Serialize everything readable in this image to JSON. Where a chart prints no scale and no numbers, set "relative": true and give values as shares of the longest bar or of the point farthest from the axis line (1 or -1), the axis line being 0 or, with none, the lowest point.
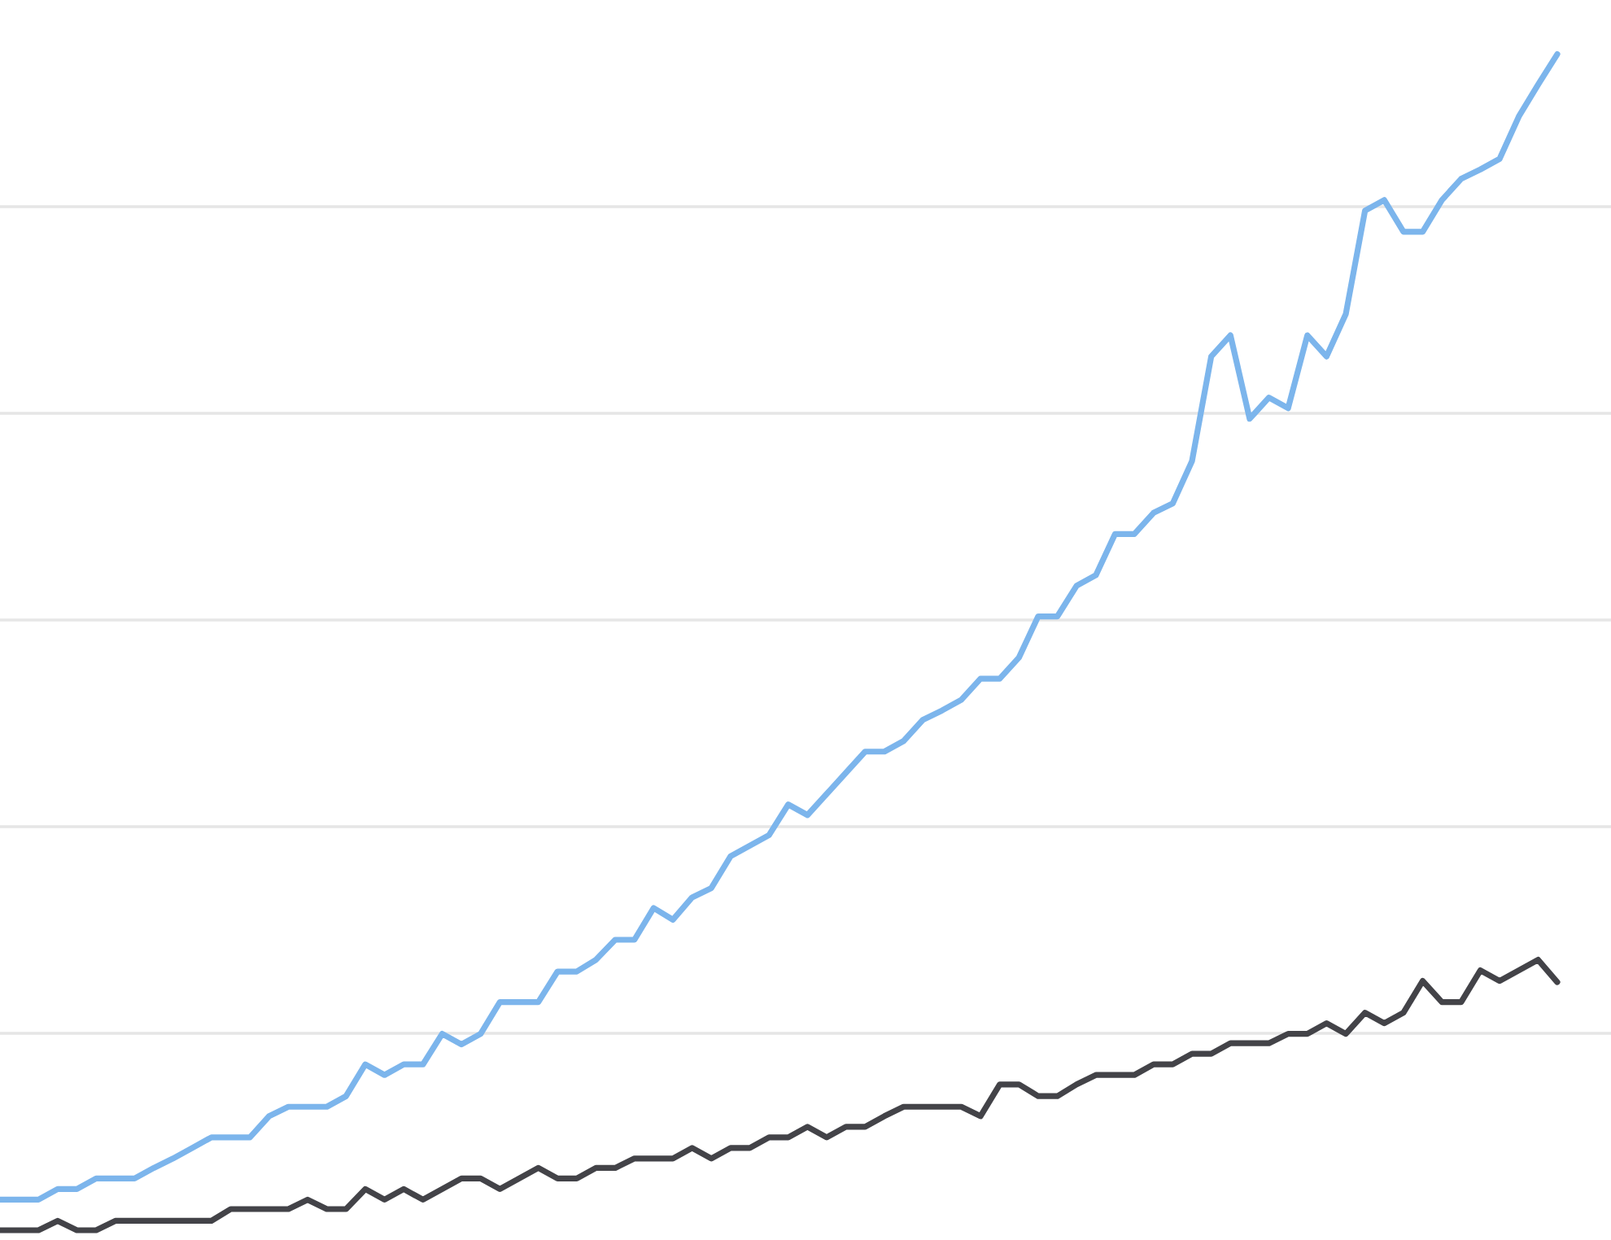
{
  "chart_data": {
    "type": "line",
    "relative": true,
    "grid": "y",
    "categories": [
      null,
      null,
      null,
      null,
      null,
      null,
      null,
      null,
      null,
      null,
      null,
      null,
      null,
      null,
      null,
      null,
      null,
      null,
      null,
      null,
      null,
      null,
      null,
      null,
      null,
      null,
      null,
      null,
      null,
      null,
      null,
      null,
      null,
      null,
      null,
      null,
      null,
      null,
      null,
      null,
      null,
      null,
      null,
      null,
      null,
      null,
      null,
      null,
      null,
      null,
      null,
      null,
      null,
      null,
      null,
      null,
      null,
      null,
      null,
      null,
      null,
      null,
      null,
      null,
      null,
      null,
      null,
      null,
      null,
      null,
      null,
      null,
      null,
      null,
      null,
      null,
      null,
      null,
      null,
      null,
      null,
      null
    ],
    "series": [
      {
        "color": "#7cb5ec",
        "values": [
          0.026,
          0.026,
          0.026,
          0.035,
          0.035,
          0.044,
          0.044,
          0.044,
          0.053,
          0.061,
          0.07,
          0.079,
          0.079,
          0.079,
          0.097,
          0.105,
          0.105,
          0.105,
          0.114,
          0.141,
          0.132,
          0.141,
          0.141,
          0.167,
          0.158,
          0.167,
          0.194,
          0.194,
          0.194,
          0.22,
          0.22,
          0.23,
          0.247,
          0.247,
          0.274,
          0.264,
          0.283,
          0.291,
          0.318,
          0.327,
          0.336,
          0.362,
          0.353,
          0.371,
          0.389,
          0.407,
          0.407,
          0.416,
          0.434,
          0.442,
          0.451,
          0.469,
          0.469,
          0.487,
          0.522,
          0.522,
          0.548,
          0.557,
          0.592,
          0.592,
          0.61,
          0.618,
          0.654,
          0.743,
          0.761,
          0.69,
          0.708,
          0.699,
          0.761,
          0.743,
          0.779,
          0.867,
          0.876,
          0.849,
          0.849,
          0.876,
          0.894,
          0.902,
          0.911,
          0.947,
          0.974,
          1.0
        ]
      },
      {
        "color": "#434348",
        "values": [
          0,
          0,
          0,
          0.008,
          0,
          0,
          0.008,
          0.008,
          0.008,
          0.008,
          0.008,
          0.008,
          0.018,
          0.018,
          0.018,
          0.018,
          0.026,
          0.018,
          0.018,
          0.035,
          0.026,
          0.035,
          0.026,
          0.035,
          0.044,
          0.044,
          0.035,
          0.044,
          0.053,
          0.044,
          0.044,
          0.053,
          0.053,
          0.061,
          0.061,
          0.061,
          0.07,
          0.061,
          0.07,
          0.07,
          0.079,
          0.079,
          0.088,
          0.079,
          0.088,
          0.088,
          0.097,
          0.105,
          0.105,
          0.105,
          0.105,
          0.097,
          0.124,
          0.124,
          0.114,
          0.114,
          0.124,
          0.132,
          0.132,
          0.132,
          0.141,
          0.141,
          0.15,
          0.15,
          0.159,
          0.159,
          0.159,
          0.167,
          0.167,
          0.176,
          0.167,
          0.185,
          0.176,
          0.185,
          0.212,
          0.194,
          0.194,
          0.221,
          0.212,
          0.221,
          0.23,
          0.211
        ]
      }
    ]
  }
}
